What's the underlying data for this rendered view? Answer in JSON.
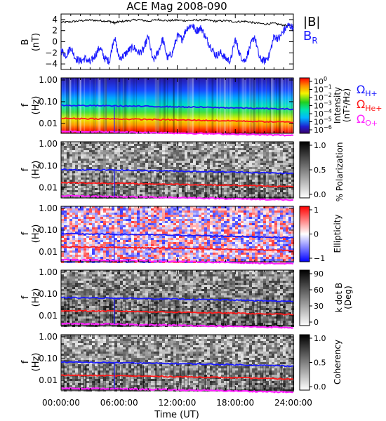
{
  "title": "ACE Mag 2008-090",
  "time_axis": {
    "ticks": [
      "00:00:00",
      "06:00:00",
      "12:00:00",
      "18:00:00",
      "24:00:00"
    ],
    "tick_hours": [
      0,
      6,
      12,
      18,
      24
    ],
    "label": "Time (UT)"
  },
  "colors": {
    "b_total": "#000000",
    "b_radial": "#1a1aff",
    "omega_h": "#1a1aff",
    "omega_he": "#ff1a1a",
    "omega_o": "#ff20ff"
  },
  "panels": {
    "mag": {
      "ylabel_line1": "B",
      "ylabel_line2": "(nT)",
      "legend_b_total": "|B|",
      "legend_b_radial_main": "B",
      "legend_b_radial_sub": "R"
    },
    "intensity": {
      "ylabel_line1": "f",
      "ylabel_line2": "(Hz)",
      "cbar_ticks": [
        "10",
        "10",
        "10",
        "10",
        "10",
        "10",
        "10"
      ],
      "cbar_exps": [
        "0",
        "−1",
        "−2",
        "−3",
        "−4",
        "−5",
        "−6"
      ],
      "cbar_title_line1": "Intensity",
      "cbar_title_line2": "(nT²/Hz)",
      "legend_h_main": "Ω",
      "legend_h_sub": "H+",
      "legend_he_main": "Ω",
      "legend_he_sub": "He+",
      "legend_o_main": "Ω",
      "legend_o_sub": "O+"
    },
    "polarization": {
      "ylabel_line1": "f",
      "ylabel_line2": "(Hz)",
      "cbar_ticks": [
        "1.0",
        "0.5",
        "0.0"
      ],
      "cbar_title": "% Polarization"
    },
    "ellipticity": {
      "ylabel_line1": "f",
      "ylabel_line2": "(Hz)",
      "cbar_ticks": [
        "1",
        "0",
        "−1"
      ],
      "cbar_title": "Ellipticity"
    },
    "kdotb": {
      "ylabel_line1": "f",
      "ylabel_line2": "(Hz)",
      "cbar_ticks": [
        "90",
        "60",
        "30",
        "0"
      ],
      "cbar_title_line1": "k dot B",
      "cbar_title_line2": "(Deg)"
    },
    "coherency": {
      "ylabel_line1": "f",
      "ylabel_line2": "(Hz)",
      "cbar_ticks": [
        "1.0",
        "0.5",
        "0.0"
      ],
      "cbar_title": "Coherency"
    }
  },
  "freq_ticks": [
    "1.00",
    "0.10",
    "0.01"
  ],
  "mag_ticks": [
    "4",
    "2",
    "0",
    "−2",
    "−4"
  ],
  "chart_data": [
    {
      "type": "line",
      "title": "ACE Mag 2008-090",
      "xlabel": "Time (UT)",
      "ylabel": "B (nT)",
      "xlim": [
        0,
        24
      ],
      "ylim": [
        -5,
        5
      ],
      "series": [
        {
          "name": "|B|",
          "x": [
            0,
            1,
            2,
            3,
            4,
            5,
            5.5,
            6,
            7,
            8,
            9,
            10,
            11,
            12,
            13,
            14,
            15,
            16,
            17,
            18,
            19,
            20,
            21,
            22,
            23,
            24
          ],
          "y": [
            3.5,
            3.6,
            3.8,
            3.9,
            3.8,
            3.7,
            3.4,
            3.6,
            3.8,
            4.0,
            3.7,
            4.0,
            3.8,
            3.9,
            3.8,
            3.9,
            3.9,
            3.7,
            3.8,
            3.6,
            3.7,
            3.4,
            3.2,
            3.3,
            3.0,
            2.8
          ]
        },
        {
          "name": "B_R",
          "x": [
            0,
            0.5,
            1,
            1.5,
            2,
            2.5,
            3,
            3.5,
            4,
            4.5,
            5,
            5.5,
            6,
            6.5,
            7,
            7.5,
            8,
            8.5,
            9,
            9.5,
            10,
            10.5,
            11,
            11.5,
            12,
            12.5,
            13,
            13.5,
            14,
            14.5,
            15,
            15.5,
            16,
            16.5,
            17,
            17.5,
            18,
            18.5,
            19,
            19.5,
            20,
            20.5,
            21,
            21.5,
            22,
            22.5,
            23,
            23.5,
            24
          ],
          "y": [
            -1.5,
            -2.5,
            -1.0,
            -3.0,
            -3.5,
            -3.0,
            -3.8,
            -2.5,
            -1.0,
            -3.0,
            -3.5,
            1.0,
            -3.0,
            -2.5,
            -1.5,
            -1.0,
            -2.0,
            -1.5,
            1.0,
            -3.5,
            -2.0,
            0.5,
            -3.0,
            -2.0,
            1.0,
            0.5,
            2.5,
            3.0,
            2.0,
            2.5,
            0.5,
            -1.0,
            -2.5,
            -2.0,
            -3.0,
            -3.5,
            0.5,
            -2.5,
            -3.5,
            -1.0,
            1.0,
            -3.0,
            -3.5,
            -2.5,
            1.0,
            0.5,
            2.0,
            3.0,
            2.5
          ]
        }
      ]
    },
    {
      "type": "heatmap",
      "title": "",
      "xlabel": "Time (UT)",
      "ylabel": "f (Hz)",
      "xlim": [
        0,
        24
      ],
      "ylim": [
        0.004,
        1.2
      ],
      "yscale": "log",
      "zlabel": "Intensity (nT²/Hz)",
      "zscale": "log",
      "zlim": [
        1e-06,
        1
      ],
      "overlay_series": [
        {
          "name": "Ω H+",
          "x": [
            0,
            6,
            12,
            18,
            24
          ],
          "y": [
            0.068,
            0.064,
            0.058,
            0.052,
            0.045
          ]
        },
        {
          "name": "Ω He+",
          "x": [
            0,
            6,
            12,
            18,
            24
          ],
          "y": [
            0.017,
            0.016,
            0.0145,
            0.013,
            0.0113
          ]
        },
        {
          "name": "Ω O+",
          "x": [
            0,
            6,
            12,
            18,
            24
          ],
          "y": [
            0.0043,
            0.004,
            0.0036,
            0.0032,
            0.0028
          ]
        }
      ]
    },
    {
      "type": "heatmap",
      "title": "",
      "xlabel": "Time (UT)",
      "ylabel": "f (Hz)",
      "xlim": [
        0,
        24
      ],
      "yscale": "log",
      "zlabel": "% Polarization",
      "zlim": [
        0,
        1
      ]
    },
    {
      "type": "heatmap",
      "title": "",
      "xlabel": "Time (UT)",
      "ylabel": "f (Hz)",
      "xlim": [
        0,
        24
      ],
      "yscale": "log",
      "zlabel": "Ellipticity",
      "zlim": [
        -1,
        1
      ]
    },
    {
      "type": "heatmap",
      "title": "",
      "xlabel": "Time (UT)",
      "ylabel": "f (Hz)",
      "xlim": [
        0,
        24
      ],
      "yscale": "log",
      "zlabel": "k dot B (Deg)",
      "zlim": [
        0,
        90
      ]
    },
    {
      "type": "heatmap",
      "title": "",
      "xlabel": "Time (UT)",
      "ylabel": "f (Hz)",
      "xlim": [
        0,
        24
      ],
      "yscale": "log",
      "zlabel": "Coherency",
      "zlim": [
        0,
        1
      ]
    }
  ]
}
